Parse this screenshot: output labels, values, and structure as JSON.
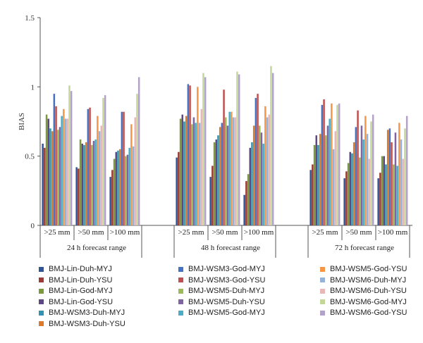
{
  "chart_data": {
    "type": "bar",
    "ylabel": "BIAS",
    "xlabel": "",
    "ylim": [
      0,
      1.5
    ],
    "yticks": [
      "0",
      "0.5",
      "1",
      "1.5"
    ],
    "groups": [
      {
        "label": "24 h forecast range",
        "subcategories": [
          ">25 mm",
          ">50 mm",
          ">100 mm"
        ]
      },
      {
        "label": "48 h forecast range",
        "subcategories": [
          ">25 mm",
          ">50 mm",
          ">100 mm"
        ]
      },
      {
        "label": "72 h forecast range",
        "subcategories": [
          ">25 mm",
          ">50 mm",
          ">100 mm"
        ]
      }
    ],
    "series": [
      {
        "name": "BMJ-Lin-Duh-MYJ",
        "color": "#2E5597",
        "values": [
          0.59,
          0.42,
          0.35,
          0.49,
          0.35,
          0.22,
          0.4,
          0.34,
          0.34
        ]
      },
      {
        "name": "BMJ-Lin-Duh-YSU",
        "color": "#9E3A33",
        "values": [
          0.56,
          0.41,
          0.4,
          0.53,
          0.43,
          0.32,
          0.44,
          0.39,
          0.38
        ]
      },
      {
        "name": "BMJ-Lin-God-MYJ",
        "color": "#7A9A3C",
        "values": [
          0.8,
          0.62,
          0.48,
          0.77,
          0.6,
          0.37,
          0.58,
          0.45,
          0.5
        ]
      },
      {
        "name": "BMJ-Lin-God-YSU",
        "color": "#5E4785",
        "values": [
          0.77,
          0.59,
          0.53,
          0.8,
          0.62,
          0.56,
          0.65,
          0.53,
          0.5
        ]
      },
      {
        "name": "BMJ-WSM3-Duh-MYJ",
        "color": "#2F93B1",
        "values": [
          0.7,
          0.58,
          0.54,
          0.75,
          0.65,
          0.6,
          0.58,
          0.52,
          0.44
        ]
      },
      {
        "name": "BMJ-WSM3-Duh-YSU",
        "color": "#DB7A2A",
        "values": [
          0.68,
          0.6,
          0.55,
          0.79,
          0.71,
          0.72,
          0.66,
          0.6,
          0.69
        ]
      },
      {
        "name": "BMJ-WSM3-God-MYJ",
        "color": "#4472C4",
        "values": [
          0.95,
          0.84,
          0.82,
          1.02,
          0.74,
          0.92,
          0.87,
          0.71,
          0.7
        ]
      },
      {
        "name": "BMJ-WSM3-God-YSU",
        "color": "#C0504D",
        "values": [
          0.86,
          0.85,
          0.82,
          1.01,
          0.98,
          0.95,
          0.91,
          0.83,
          0.6
        ]
      },
      {
        "name": "BMJ-WSM5-Duh-MYJ",
        "color": "#9BBB59",
        "values": [
          0.69,
          0.58,
          0.5,
          0.73,
          0.78,
          0.72,
          0.65,
          0.49,
          0.44
        ]
      },
      {
        "name": "BMJ-WSM5-Duh-YSU",
        "color": "#8064A2",
        "values": [
          0.71,
          0.61,
          0.51,
          0.78,
          0.72,
          0.67,
          0.72,
          0.72,
          0.67
        ]
      },
      {
        "name": "BMJ-WSM5-God-MYJ",
        "color": "#4BACC6",
        "values": [
          0.79,
          0.62,
          0.56,
          0.74,
          0.82,
          0.59,
          0.77,
          0.62,
          0.43
        ]
      },
      {
        "name": "BMJ-WSM5-God-YSU",
        "color": "#F79646",
        "values": [
          0.84,
          0.79,
          0.73,
          1.0,
          0.82,
          0.86,
          0.88,
          0.79,
          0.74
        ]
      },
      {
        "name": "BMJ-WSM6-Duh-MYJ",
        "color": "#95B3D7",
        "values": [
          0.77,
          0.68,
          0.57,
          0.74,
          0.78,
          0.78,
          0.55,
          0.66,
          0.62
        ]
      },
      {
        "name": "BMJ-WSM6-Duh-YSU",
        "color": "#E6B9B8",
        "values": [
          0.77,
          0.72,
          0.78,
          0.84,
          0.78,
          0.8,
          0.68,
          0.48,
          0.48
        ]
      },
      {
        "name": "BMJ-WSM6-God-MYJ",
        "color": "#C4D79B",
        "values": [
          1.01,
          0.92,
          0.95,
          1.1,
          1.11,
          1.15,
          0.87,
          0.75,
          0.7
        ]
      },
      {
        "name": "BMJ-WSM6-God-YSU",
        "color": "#B2A2C7",
        "values": [
          0.97,
          0.94,
          1.07,
          1.07,
          1.09,
          1.1,
          0.88,
          0.8,
          0.79
        ]
      }
    ]
  }
}
